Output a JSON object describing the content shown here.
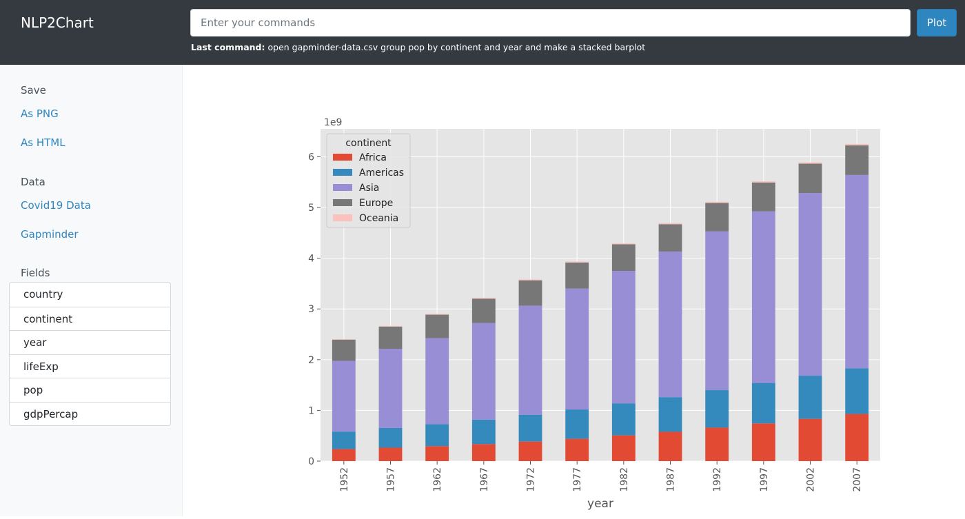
{
  "app": {
    "title": "NLP2Chart"
  },
  "command": {
    "placeholder": "Enter your commands",
    "value": "",
    "plot_label": "Plot",
    "last_label": "Last command:",
    "last_text": "open gapminder-data.csv group pop by continent and year and make a stacked barplot"
  },
  "sidebar": {
    "save_heading": "Save",
    "save_links": [
      "As PNG",
      "As HTML"
    ],
    "data_heading": "Data",
    "data_links": [
      "Covid19 Data",
      "Gapminder"
    ],
    "fields_heading": "Fields",
    "fields": [
      "country",
      "continent",
      "year",
      "lifeExp",
      "pop",
      "gdpPercap"
    ]
  },
  "chart_data": {
    "type": "bar",
    "stacked": true,
    "categories": [
      "1952",
      "1957",
      "1962",
      "1967",
      "1972",
      "1977",
      "1982",
      "1987",
      "1992",
      "1997",
      "2002",
      "2007"
    ],
    "series": [
      {
        "name": "Africa",
        "color": "#e24a33",
        "values": [
          0.237,
          0.265,
          0.296,
          0.336,
          0.385,
          0.44,
          0.508,
          0.578,
          0.66,
          0.744,
          0.834,
          0.93
        ]
      },
      {
        "name": "Americas",
        "color": "#348abd",
        "values": [
          0.345,
          0.387,
          0.433,
          0.481,
          0.53,
          0.578,
          0.631,
          0.683,
          0.739,
          0.797,
          0.85,
          0.899
        ]
      },
      {
        "name": "Asia",
        "color": "#988ed5",
        "values": [
          1.395,
          1.563,
          1.697,
          1.905,
          2.15,
          2.384,
          2.61,
          2.871,
          3.133,
          3.384,
          3.601,
          3.812
        ]
      },
      {
        "name": "Europe",
        "color": "#777777",
        "values": [
          0.418,
          0.438,
          0.461,
          0.481,
          0.5,
          0.514,
          0.526,
          0.539,
          0.557,
          0.569,
          0.579,
          0.586
        ]
      },
      {
        "name": "Oceania",
        "color": "#fbc1bd",
        "values": [
          0.011,
          0.012,
          0.014,
          0.015,
          0.017,
          0.018,
          0.019,
          0.021,
          0.022,
          0.024,
          0.025,
          0.025
        ]
      }
    ],
    "xlabel": "year",
    "ylabel": "",
    "y_scale_label": "1e9",
    "ylim": [
      0,
      6.55
    ],
    "yticks": [
      0,
      1,
      2,
      3,
      4,
      5,
      6
    ],
    "legend_title": "continent",
    "legend_position": "upper-left",
    "grid": true,
    "background": "#e5e5e5"
  }
}
